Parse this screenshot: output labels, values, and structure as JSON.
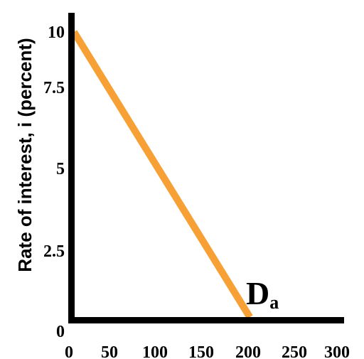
{
  "chart_data": {
    "type": "line",
    "title": "",
    "xlabel": "",
    "ylabel": "Rate of interest, i (percent)",
    "xlim": [
      0,
      300
    ],
    "ylim": [
      0,
      10
    ],
    "x_ticks": [
      "0",
      "50",
      "100",
      "150",
      "200",
      "250",
      "300"
    ],
    "y_ticks": [
      "0",
      "2.5",
      "5",
      "7.5",
      "10"
    ],
    "grid": false,
    "series": [
      {
        "name": "Da",
        "color": "#F7A035",
        "points": [
          {
            "x": 0,
            "y": 10
          },
          {
            "x": 200,
            "y": 0
          }
        ]
      }
    ],
    "annotations": [
      {
        "text": "D",
        "subscript": "a",
        "x": 200,
        "y": 0.8
      }
    ]
  }
}
